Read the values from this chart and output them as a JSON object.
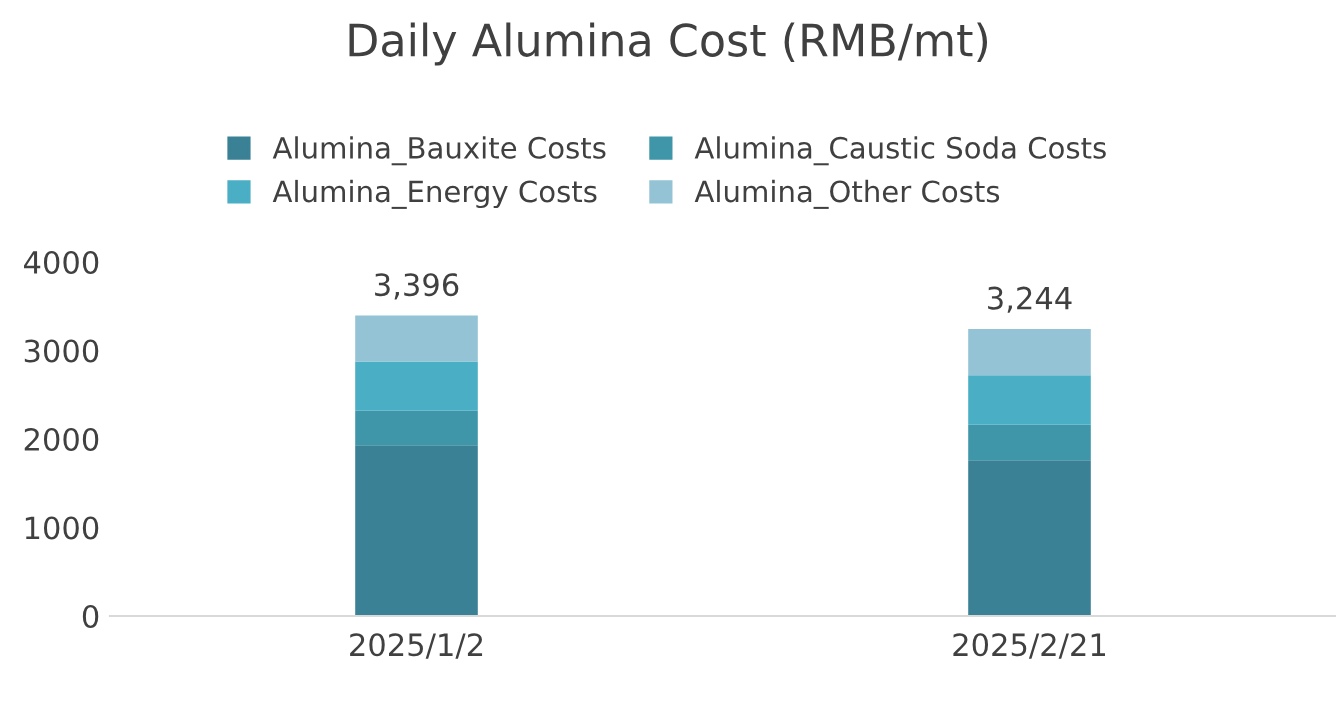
{
  "chart_data": {
    "type": "bar",
    "title": "Daily Alumina Cost (RMB/mt)",
    "stacked": true,
    "categories": [
      "2025/1/2",
      "2025/2/21"
    ],
    "series": [
      {
        "name": "Alumina_Bauxite Costs",
        "color": "#3a8196",
        "values": [
          1930,
          1760
        ]
      },
      {
        "name": "Alumina_Caustic Soda Costs",
        "color": "#3f96a8",
        "values": [
          390,
          400
        ]
      },
      {
        "name": "Alumina_Energy Costs",
        "color": "#4aaec5",
        "values": [
          555,
          560
        ]
      },
      {
        "name": "Alumina_Other Costs",
        "color": "#93c3d4",
        "values": [
          521,
          524
        ]
      }
    ],
    "totals": [
      "3,396",
      "3,244"
    ],
    "ylim": [
      0,
      4000
    ],
    "yticks": [
      0,
      1000,
      2000,
      3000,
      4000
    ],
    "grid": false,
    "legend": "top"
  }
}
